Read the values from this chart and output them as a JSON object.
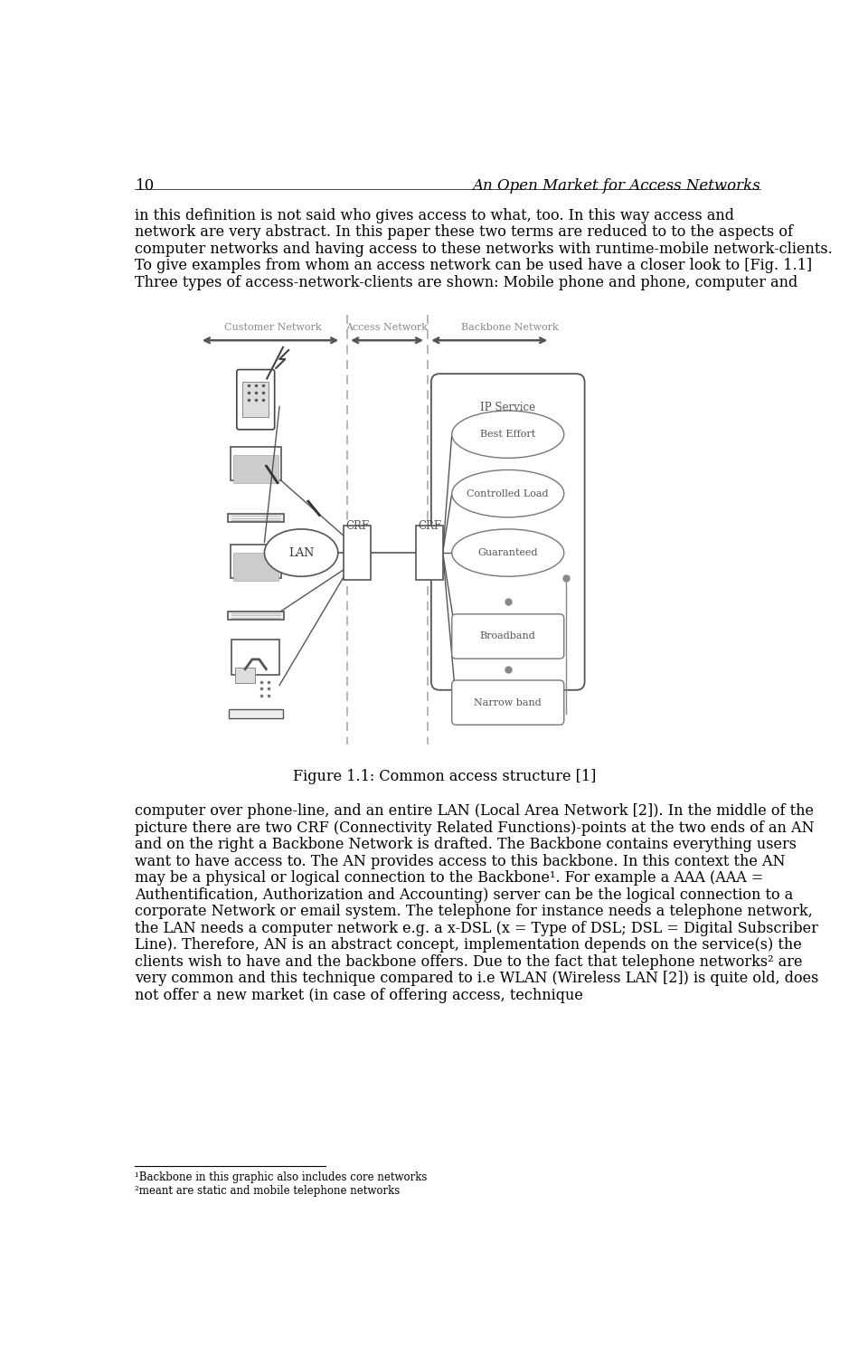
{
  "page_number": "10",
  "header_title": "An Open Market for Access Networks",
  "para1": "in this definition is not said who gives access to what, too. In this way access and network are very abstract. In this paper these two terms are reduced to to the aspects of computer networks and having access to these networks with runtime-mobile network-clients. To give examples from whom an access network can be used have a closer look to [Fig. 1.1] Three types of access-network-clients are shown: Mobile phone and phone, computer and",
  "fig_caption": "Figure 1.1: Common access structure [1]",
  "para2": "computer over phone-line, and an entire LAN (Local Area Network [2]). In the middle of the picture there are two CRF (Connectivity Related Functions)-points at the two ends of an AN and on the right a Backbone Network is drafted. The Backbone contains everything users want to have access to. The AN provides access to this backbone. In this context the AN may be a physical or logical connection to the Backbone¹. For example a AAA (AAA = Authentification, Authorization and Accounting) server can be the logical connection to a corporate Network or email system. The telephone for instance needs a telephone network, the LAN needs a computer network e.g. a x-DSL (x = Type of DSL; DSL = Digital Subscriber Line). Therefore, AN is an abstract concept, implementation depends on the service(s) the clients wish to have and the backbone offers. Due to the fact that telephone networks² are very common and this technique compared to i.e WLAN (Wireless LAN [2]) is quite old, does not offer a new market (in case of offering access, technique",
  "footnote1": "¹Backbone in this graphic also includes core networks",
  "footnote2": "²meant are static and mobile telephone networks",
  "network_labels": [
    "Customer Network",
    "Access Network",
    "Backbone Network"
  ],
  "services_ellipse": [
    "Best Effort",
    "Controlled Load",
    "Guaranteed"
  ],
  "services_rect": [
    "Broadband",
    "Narrow band"
  ],
  "bg_color": "#ffffff",
  "text_color": "#000000",
  "text_fontsize": 11.5,
  "header_fontsize": 12
}
